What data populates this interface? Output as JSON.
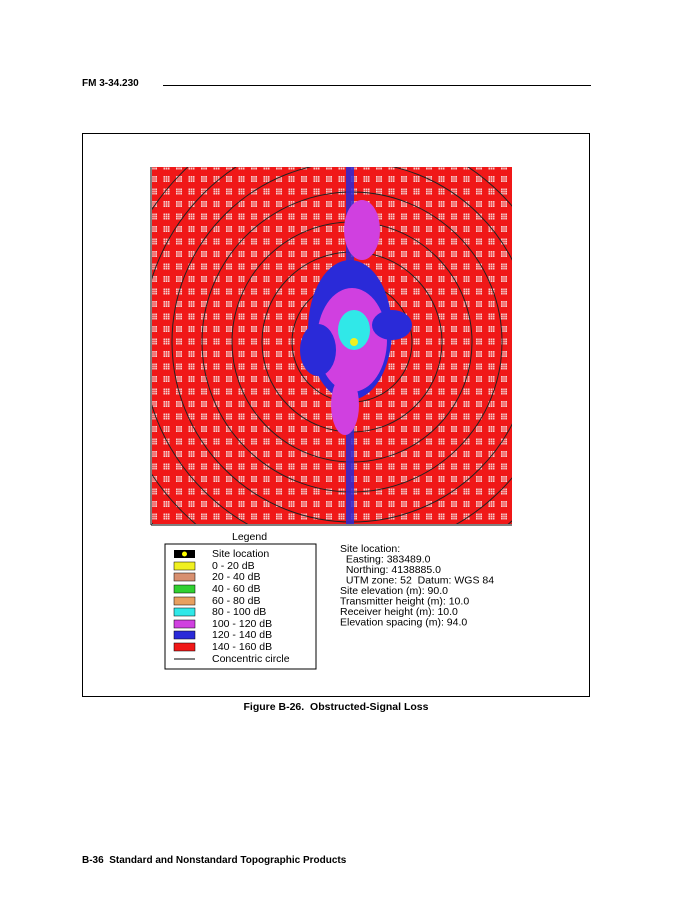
{
  "header": {
    "title": "FM 3-34.230"
  },
  "legend": {
    "title": "Legend",
    "items": [
      "Site location",
      "0 - 20 dB",
      "20 - 40 dB",
      "40 - 60 dB",
      "60 - 80 dB",
      "80 - 100 dB",
      "100 - 120 dB",
      "120 - 140 dB",
      "140 - 160 dB",
      "Concentric circle"
    ]
  },
  "site_info": [
    "Site location:",
    "  Easting: 383489.0",
    "  Northing: 4138885.0",
    "  UTM zone: 52  Datum: WGS 84",
    "Site elevation (m): 90.0",
    "Transmitter height (m): 10.0",
    "Receiver height (m): 10.0",
    "Elevation spacing (m): 94.0"
  ],
  "caption": "Figure B-26.  Obstructed-Signal Loss",
  "footer": "B-36  Standard and Nonstandard Topographic Products"
}
